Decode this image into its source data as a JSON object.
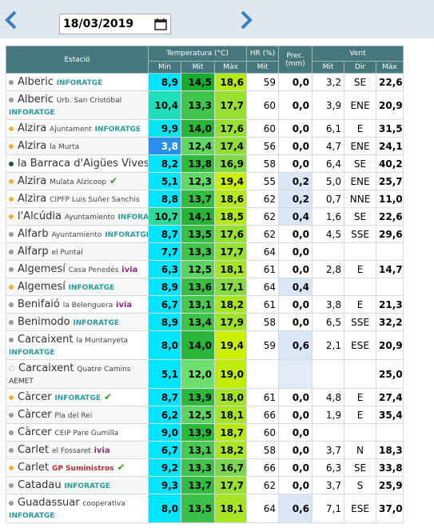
{
  "date": "18/03/2019",
  "table": {
    "header": {
      "station": "Estació",
      "temperature": "Temperatura (°C)",
      "humidity": "HR (%)",
      "precipitation": "Prec. (mm)",
      "wind": "Vent"
    },
    "subheader": {
      "tmin": "Mín",
      "tmit": "Mit",
      "tmax": "Màx",
      "hmit": "Mit",
      "wmit": "Mit",
      "wdir": "Dir",
      "wmax": "Màx"
    },
    "rows": [
      {
        "name": "Alberic",
        "network": "INFORATGE",
        "tmin": "8,9",
        "tmit": "14,5",
        "tmax": "18,6",
        "hr": "59",
        "prec": "0,0",
        "wmit": "3,2",
        "wdir": "SE",
        "wmax": "22,6"
      },
      {
        "name": "Alberic",
        "sub": "Urb. San Cristóbal",
        "network": "INFORATGE",
        "tmin": "10,4",
        "tmit": "13,3",
        "tmax": "17,7",
        "hr": "60",
        "prec": "0,0",
        "wmit": "3,9",
        "wdir": "ENE",
        "wmax": "20,9"
      },
      {
        "name": "Alzira",
        "sub": "Ajuntament",
        "network": "INFORATGE",
        "tmin": "9,9",
        "tmit": "14,0",
        "tmax": "17,6",
        "hr": "60",
        "prec": "0,0",
        "wmit": "6,1",
        "wdir": "E",
        "wmax": "31,5"
      },
      {
        "name": "Alzira",
        "sub": "la Murta",
        "tmin": "3,8",
        "tmit": "12,4",
        "tmax": "17,4",
        "hr": "56",
        "prec": "0,0",
        "wmit": "4,7",
        "wdir": "ENE",
        "wmax": "24,1"
      },
      {
        "name": "la Barraca d'Aigües Vives",
        "tmin": "8,2",
        "tmit": "13,8",
        "tmax": "16,9",
        "hr": "58",
        "prec": "0,0",
        "wmit": "6,4",
        "wdir": "SE",
        "wmax": "40,2"
      },
      {
        "name": "Alzira",
        "sub": "Mulata Alzicoop",
        "tmin": "5,1",
        "tmit": "12,3",
        "tmax": "19,4",
        "hr": "55",
        "prec": "0,2",
        "wmit": "5,0",
        "wdir": "ENE",
        "wmax": "25,7"
      },
      {
        "name": "Alzira",
        "sub": "CIPFP Luis Suñer Sanchis",
        "tmin": "8,8",
        "tmit": "13,7",
        "tmax": "18,6",
        "hr": "62",
        "prec": "0,2",
        "wmit": "0,7",
        "wdir": "NNE",
        "wmax": "11,0"
      },
      {
        "name": "l'Alcúdia",
        "sub": "Ayuntamiento",
        "network": "INFORATGE",
        "tmin": "10,7",
        "tmit": "14,1",
        "tmax": "18,5",
        "hr": "62",
        "prec": "0,4",
        "wmit": "1,6",
        "wdir": "SE",
        "wmax": "22,6"
      },
      {
        "name": "Alfarb",
        "sub": "Ayuntamiento",
        "network": "INFORATGE",
        "tmin": "8,7",
        "tmit": "13,5",
        "tmax": "17,6",
        "hr": "62",
        "prec": "0,0",
        "wmit": "4,5",
        "wdir": "SSE",
        "wmax": "29,6"
      },
      {
        "name": "Alfarp",
        "sub": "el Puntal",
        "tmin": "7,7",
        "tmit": "13,3",
        "tmax": "17,7",
        "hr": "64",
        "prec": "0,0"
      },
      {
        "name": "Algemesí",
        "sub": "Casa Penedés",
        "network": "ivia",
        "tmin": "6,3",
        "tmit": "12,5",
        "tmax": "18,1",
        "hr": "61",
        "prec": "0,0",
        "wmit": "2,8",
        "wdir": "E",
        "wmax": "14,7"
      },
      {
        "name": "Algemesí",
        "network": "INFORATGE",
        "tmin": "8,9",
        "tmit": "13,6",
        "tmax": "17,1",
        "hr": "64",
        "prec": "0,4"
      },
      {
        "name": "Benifaió",
        "sub": "la Belenguera",
        "network": "ivia",
        "tmin": "6,7",
        "tmit": "13,1",
        "tmax": "18,2",
        "hr": "61",
        "prec": "0,0",
        "wmit": "3,8",
        "wdir": "E",
        "wmax": "21,3"
      },
      {
        "name": "Benimodo",
        "network": "INFORATGE",
        "tmin": "8,9",
        "tmit": "13,4",
        "tmax": "17,9",
        "hr": "58",
        "prec": "0,0",
        "wmit": "6,5",
        "wdir": "SSE",
        "wmax": "32,2"
      },
      {
        "name": "Carcaixent",
        "sub": "la Muntanyeta",
        "network": "INFORATGE",
        "tmin": "8,0",
        "tmit": "14,0",
        "tmax": "19,4",
        "hr": "59",
        "prec": "0,6",
        "wmit": "2,1",
        "wdir": "ESE",
        "wmax": "20,9"
      },
      {
        "name": "Carcaixent",
        "sub": "Quatre Camins",
        "network": "AEMET",
        "tmin": "5,1",
        "tmit": "12,0",
        "tmax": "19,0",
        "wmax": "25,0"
      },
      {
        "name": "Càrcer",
        "network": "INFORATGE",
        "tmin": "8,7",
        "tmit": "13,9",
        "tmax": "18,0",
        "hr": "61",
        "prec": "0,0",
        "wmit": "4,8",
        "wdir": "E",
        "wmax": "27,4"
      },
      {
        "name": "Càrcer",
        "sub": "Pla del Rei",
        "tmin": "6,2",
        "tmit": "12,5",
        "tmax": "18,1",
        "hr": "66",
        "prec": "0,0",
        "wmit": "1,9",
        "wdir": "E",
        "wmax": "35,4"
      },
      {
        "name": "Càrcer",
        "sub": "CEIP Pare Gumilla",
        "tmin": "9,0",
        "tmit": "13,9",
        "tmax": "18,7",
        "hr": "60",
        "prec": "0,0"
      },
      {
        "name": "Carlet",
        "sub": "el Fossaret",
        "network": "ivia",
        "tmin": "6,7",
        "tmit": "13,1",
        "tmax": "18,2",
        "hr": "58",
        "prec": "0,0",
        "wmit": "3,7",
        "wdir": "N",
        "wmax": "18,3"
      },
      {
        "name": "Carlet",
        "network": "GP Suministros",
        "tmin": "9,2",
        "tmit": "13,3",
        "tmax": "16,7",
        "hr": "66",
        "prec": "0,0",
        "wmit": "6,3",
        "wdir": "SE",
        "wmax": "33,8"
      },
      {
        "name": "Catadau",
        "network": "INFORATGE",
        "tmin": "9,3",
        "tmit": "13,7",
        "tmax": "17,7",
        "hr": "62",
        "prec": "0,0",
        "wmit": "3,7",
        "wdir": "S",
        "wmax": "25,9"
      },
      {
        "name": "Guadassuar",
        "sub": "cooperativa",
        "network": "INFORATGE",
        "tmin": "8,0",
        "tmit": "13,5",
        "tmax": "18,1",
        "hr": "64",
        "prec": "0,6",
        "wmit": "7,1",
        "wdir": "ESE",
        "wmax": "37,0"
      }
    ]
  }
}
